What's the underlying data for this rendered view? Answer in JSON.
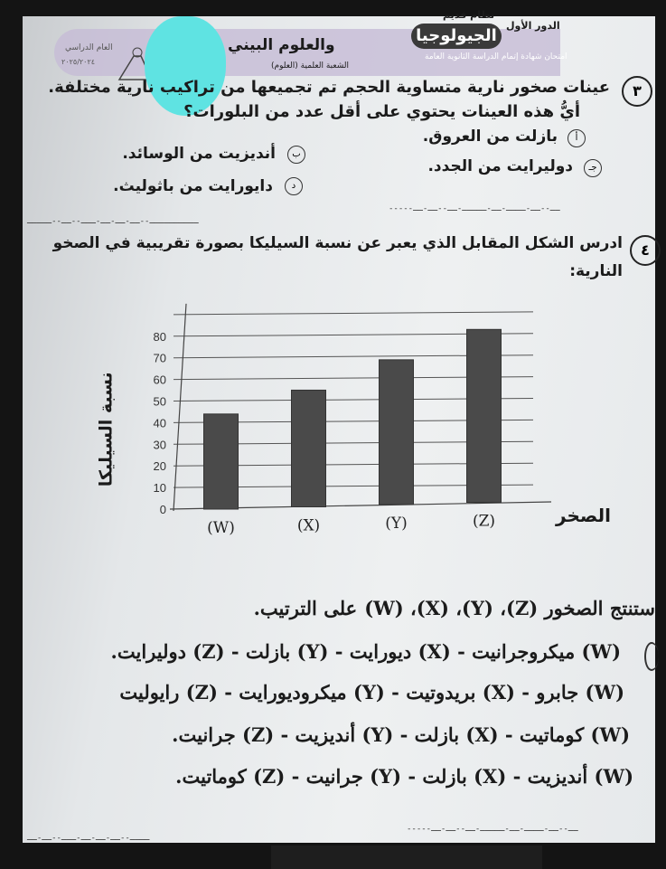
{
  "header": {
    "session": "الدور الأول",
    "system": "نظام قديم",
    "exam_title": "امتحان شهادة إتمام الدراسة الثانوية العامة",
    "subject_main": "الجيولوجيا",
    "subject_rest": "والعلوم البيني",
    "branch": "الشعبة العلمية (العلوم)",
    "year_label": "العام الدراسي",
    "year": "٢٠٢٥/٢٠٢٤"
  },
  "question3": {
    "number": "٣",
    "line1": "عينات صخور نارية متساوية الحجم تم تجميعها من تراكيب نارية مختلفة.",
    "line2": "أيُّ هذه العينات يحتوي على أقل عدد من البلورات؟",
    "options": [
      {
        "mark": "أ",
        "text": "بازلت من العروق."
      },
      {
        "mark": "ب",
        "text": "أنديزيت من الوسائد."
      },
      {
        "mark": "جـ",
        "text": "دوليرايت من الجدد."
      },
      {
        "mark": "د",
        "text": "دايورايت من باثوليث."
      }
    ]
  },
  "question4": {
    "number": "٤",
    "line1": "ادرس الشكل المقابل الذي يعبر عن نسبة السيليكا بصورة تقريبية في الصخو",
    "line2": "النارية:",
    "prompt1": "ستنتج الصخور (Z)، (Y)، (X)، (W)",
    "prompt2": "على الترتيب.",
    "options": [
      "(W) ميكروجرانيت - (X) ديورايت - (Y) بازلت - (Z) دوليرايت.",
      "(W) جابرو - (X) بريدوتيت - (Y) ميكروديورايت - (Z) رايوليت",
      "(W) كوماتيت - (X) بازلت - (Y) أنديزيت - (Z) جرانيت.",
      "(W) أنديزيت - (X) بازلت - (Y) جرانيت - (Z) كوماتيت."
    ]
  },
  "chart_data": {
    "type": "bar",
    "categories": [
      "(W)",
      "(X)",
      "(Y)",
      "(Z)"
    ],
    "values": [
      44,
      54,
      67,
      80
    ],
    "xlabel": "الصخر",
    "ylabel": "نسبة السيليكا",
    "ylim": [
      0,
      90
    ],
    "yticks": [
      0,
      10,
      20,
      30,
      40,
      50,
      60,
      70,
      80
    ],
    "grid": true,
    "bar_color": "#4a4a4a"
  },
  "colors": {
    "highlight_blob": "#5fe3e2",
    "header_band": "#c6bcd6"
  }
}
